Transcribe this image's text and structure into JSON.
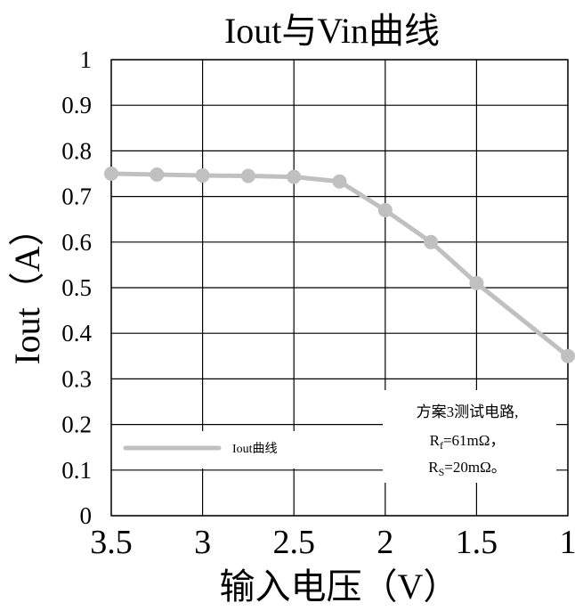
{
  "chart_data": {
    "type": "line",
    "title": "Iout与Vin曲线",
    "xlabel": "输入电压（V）",
    "ylabel": "Iout（A）",
    "xlim": [
      3.5,
      1
    ],
    "ylim": [
      0,
      1
    ],
    "x_reversed": true,
    "xticks": [
      3.5,
      3,
      2.5,
      2,
      1.5,
      1
    ],
    "xtick_labels": [
      "3.5",
      "3",
      "2.5",
      "2",
      "1.5",
      "1"
    ],
    "yticks": [
      0,
      0.1,
      0.2,
      0.3,
      0.4,
      0.5,
      0.6,
      0.7,
      0.8,
      0.9,
      1
    ],
    "ytick_labels": [
      "0",
      "0.1",
      "0.2",
      "0.3",
      "0.4",
      "0.5",
      "0.6",
      "0.7",
      "0.8",
      "0.9",
      "1"
    ],
    "grid": true,
    "legend_position": "bottom-left",
    "series": [
      {
        "name": "Iout曲线",
        "color": "#c0c0c0",
        "x": [
          3.5,
          3.25,
          3.0,
          2.75,
          2.5,
          2.25,
          2.0,
          1.75,
          1.5,
          1.0
        ],
        "y": [
          0.75,
          0.748,
          0.746,
          0.745,
          0.743,
          0.733,
          0.67,
          0.6,
          0.51,
          0.35
        ]
      }
    ],
    "annotation": {
      "line1": "方案3测试电路,",
      "line2_pre": "R",
      "line2_sub": "f",
      "line2_post": "=61mΩ，",
      "line3_pre": "R",
      "line3_sub": "S",
      "line3_post": "=20mΩ。"
    }
  }
}
